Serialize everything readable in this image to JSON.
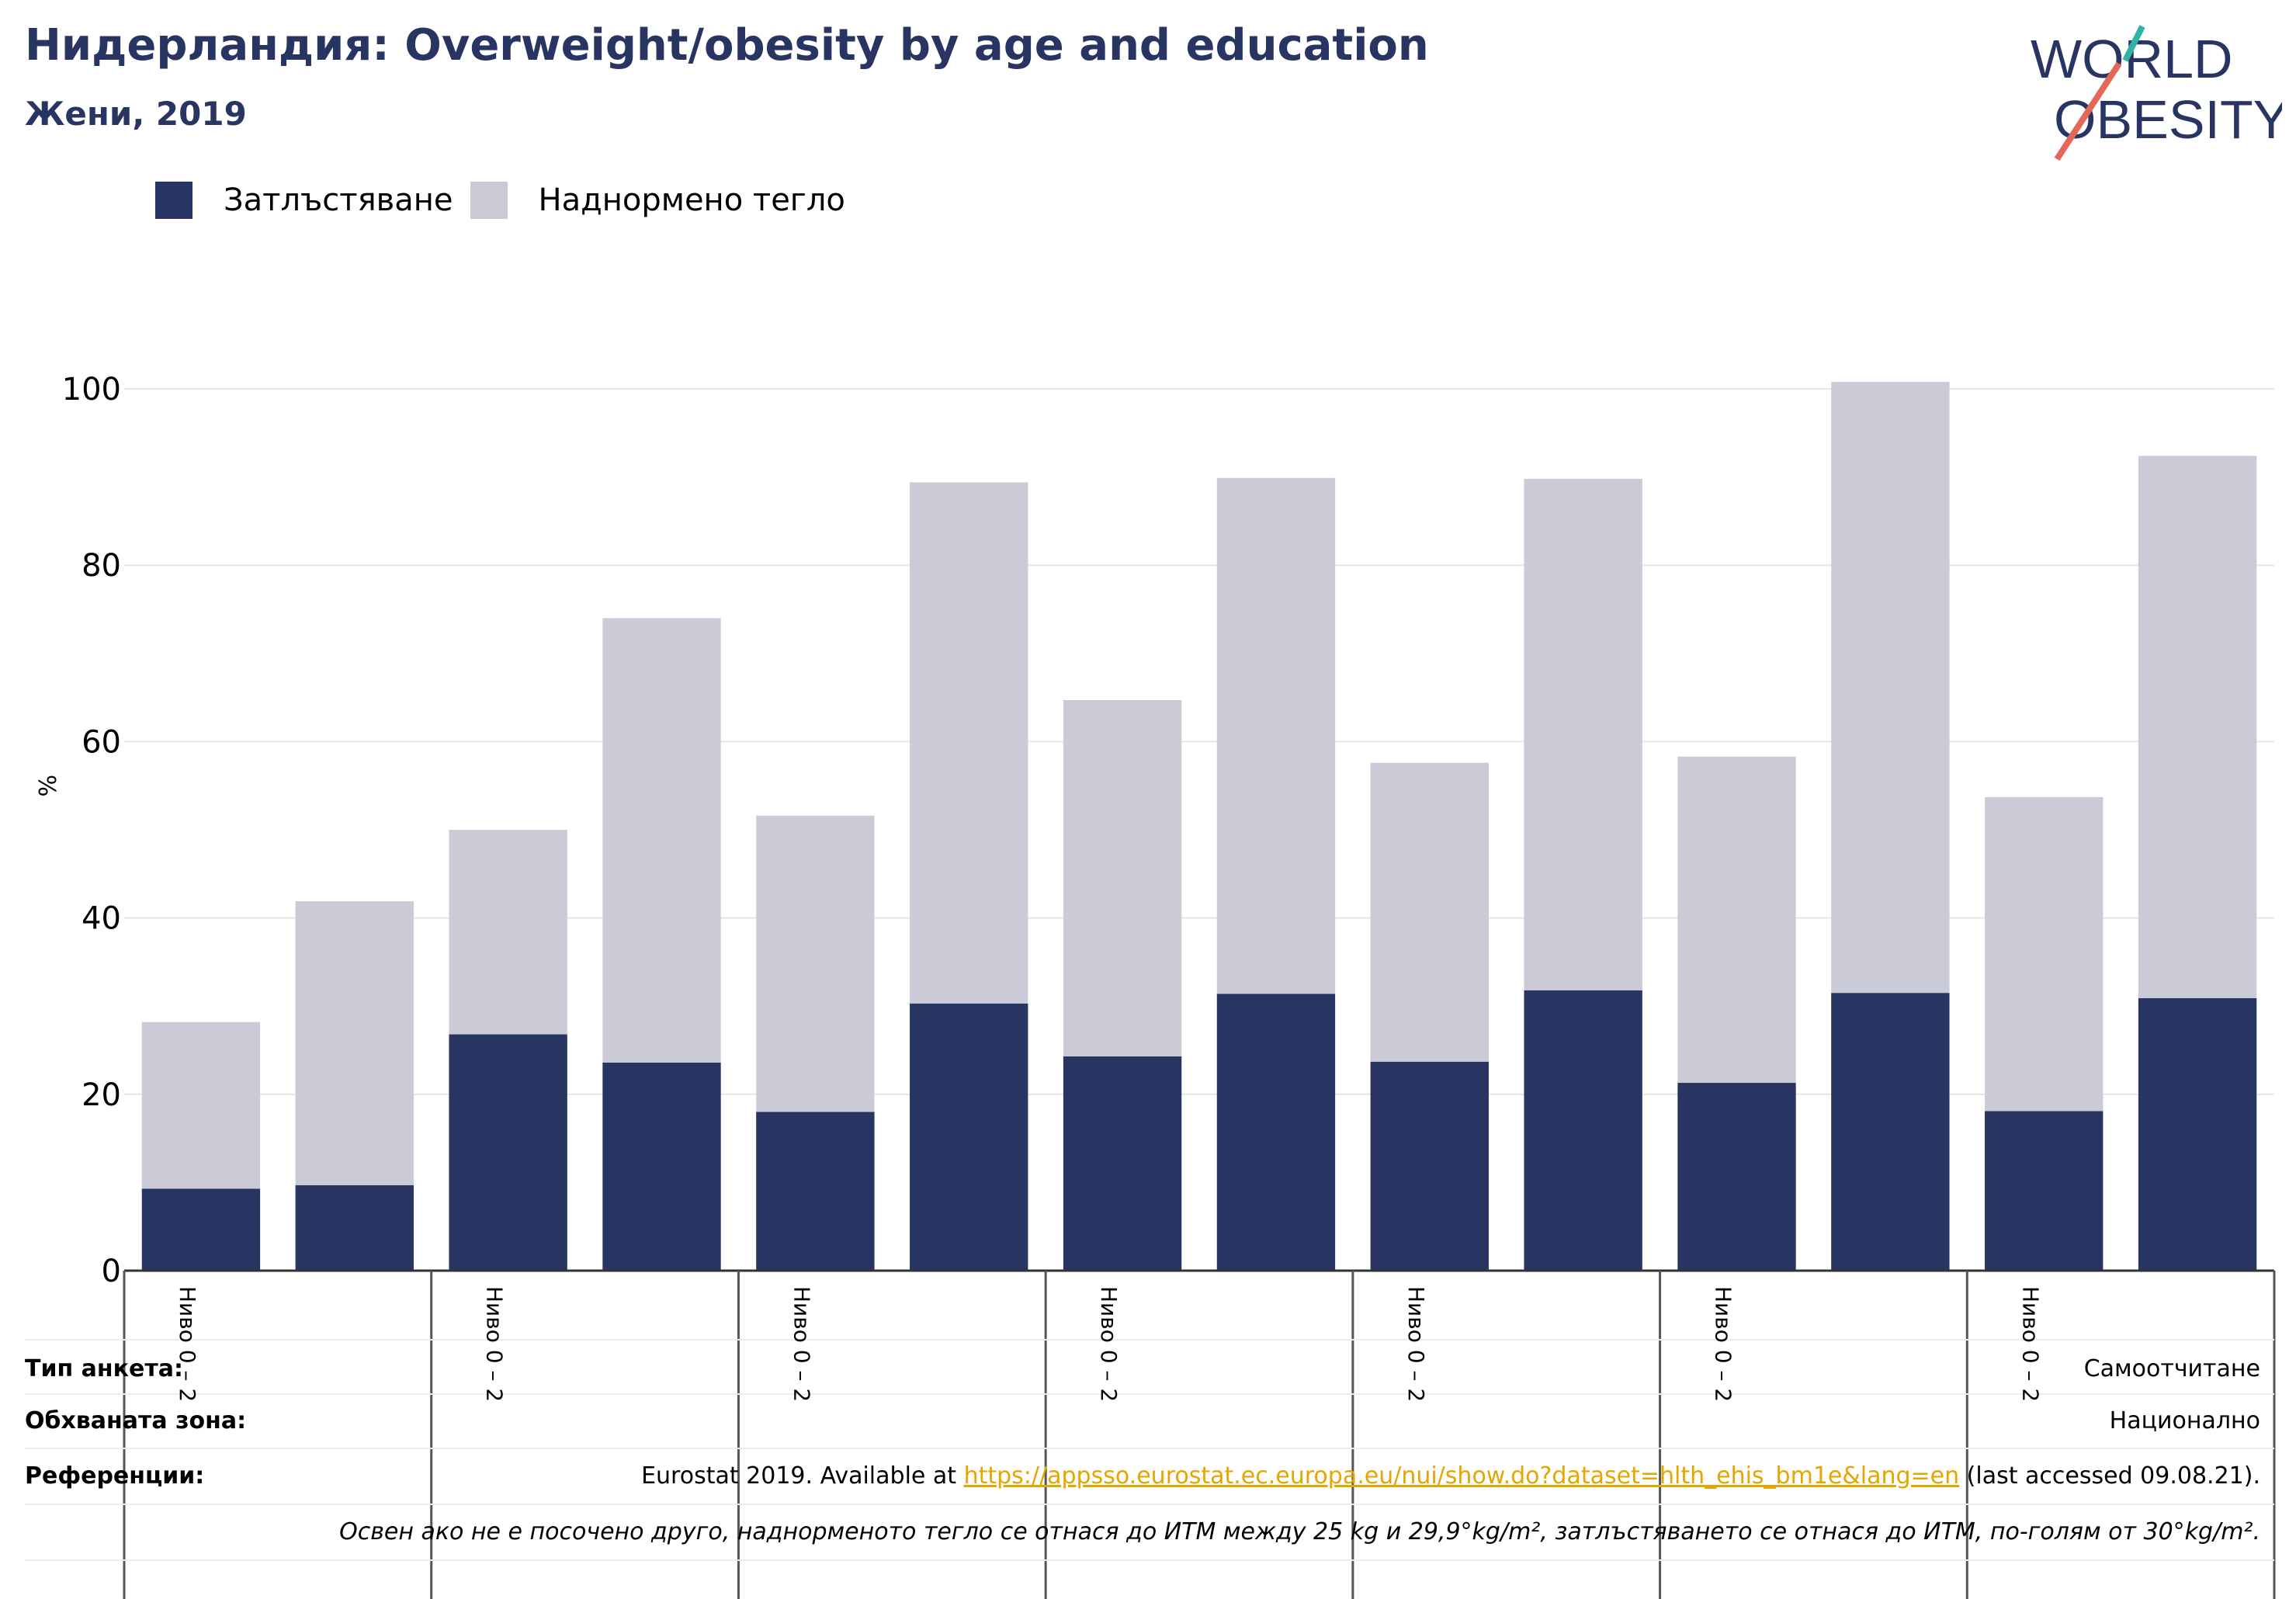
{
  "header": {
    "title": "Нидерландия: Overweight/obesity by age and education",
    "subtitle": "Жени, 2019"
  },
  "logo": {
    "line1": "WORLD",
    "line2": "OBESITY"
  },
  "legend": [
    {
      "label": "Затлъстяване",
      "color": "#283562"
    },
    {
      "label": "Наднормено тегло",
      "color": "#cacbd7"
    }
  ],
  "chart_data": {
    "type": "bar",
    "stacked": true,
    "ylabel": "%",
    "ylim": [
      0,
      100
    ],
    "yticks": [
      0,
      20,
      40,
      60,
      80,
      100
    ],
    "grid": true,
    "group_labels": [
      "Ниво 0 – 2",
      "Ниво 0 – 2",
      "Ниво 0 – 2",
      "Ниво 0 – 2",
      "Ниво 0 – 2",
      "Ниво 0 – 2",
      "Ниво 0 – 2"
    ],
    "series": [
      {
        "name": "Затлъстяване",
        "color": "#283562",
        "values": [
          9.3,
          9.7,
          26.8,
          23.6,
          18.0,
          30.3,
          24.3,
          31.4,
          23.7,
          31.8,
          21.3,
          31.5,
          18.1,
          30.9
        ]
      },
      {
        "name": "Наднормено тегло",
        "color": "#cacbd7",
        "values": [
          18.9,
          32.2,
          23.2,
          50.4,
          33.6,
          59.1,
          40.4,
          58.5,
          33.9,
          58.0,
          37.0,
          69.3,
          35.6,
          61.5
        ]
      }
    ]
  },
  "info": {
    "survey_type_label": "Тип анкета:",
    "survey_type_value": "Самоотчитане",
    "coverage_label": "Обхваната зона:",
    "coverage_value": "Национално",
    "references_label": "Референции:",
    "references_prefix": "Eurostat 2019. Available at ",
    "references_link": "https://appsso.eurostat.ec.europa.eu/nui/show.do?dataset=hlth_ehis_bm1e&lang=en",
    "references_suffix": " (last accessed 09.08.21).",
    "note": "Освен ако не е посочено друго, наднорменото тегло се отнася до ИТМ между 25 kg и 29,9°kg/m², затлъстяването се отнася до ИТМ, по-голям от 30°kg/m²."
  }
}
